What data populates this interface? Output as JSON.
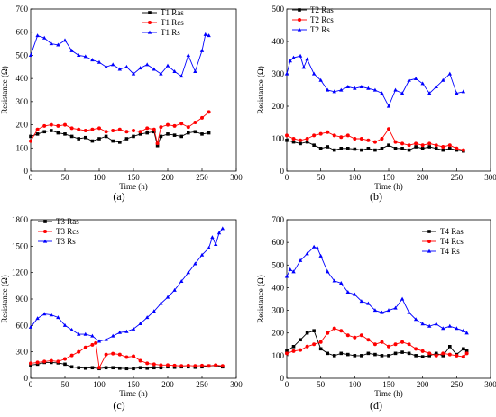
{
  "chart_data": [
    {
      "panel": "(a)",
      "type": "line",
      "xlabel": "Time (h)",
      "ylabel": "Resistance (Ω)",
      "xlim": [
        0,
        300
      ],
      "ylim": [
        0,
        700
      ],
      "xticks": [
        0,
        50,
        100,
        150,
        200,
        250,
        300
      ],
      "yticks": [
        0,
        100,
        200,
        300,
        400,
        500,
        600,
        700
      ],
      "legend_position": "top-right",
      "series": [
        {
          "name": "T1 Ras",
          "color": "#000000",
          "marker": "square",
          "x": [
            0,
            10,
            20,
            30,
            40,
            50,
            60,
            70,
            80,
            90,
            100,
            110,
            120,
            130,
            140,
            150,
            160,
            170,
            180,
            185,
            190,
            200,
            210,
            220,
            230,
            240,
            250,
            260
          ],
          "y": [
            150,
            160,
            170,
            175,
            165,
            160,
            150,
            140,
            145,
            130,
            140,
            150,
            130,
            125,
            140,
            150,
            160,
            165,
            170,
            110,
            150,
            160,
            155,
            150,
            165,
            170,
            160,
            165
          ]
        },
        {
          "name": "T1 Rcs",
          "color": "#ff0000",
          "marker": "circle",
          "x": [
            0,
            10,
            20,
            30,
            40,
            50,
            60,
            70,
            80,
            90,
            100,
            110,
            120,
            130,
            140,
            150,
            160,
            170,
            180,
            185,
            190,
            200,
            210,
            220,
            230,
            240,
            250,
            260
          ],
          "y": [
            130,
            180,
            195,
            200,
            195,
            200,
            185,
            180,
            175,
            180,
            185,
            170,
            175,
            180,
            170,
            175,
            170,
            185,
            180,
            120,
            190,
            200,
            195,
            205,
            190,
            210,
            230,
            255
          ]
        },
        {
          "name": "T1 Rs",
          "color": "#0000ff",
          "marker": "triangle",
          "x": [
            0,
            10,
            20,
            30,
            40,
            50,
            60,
            70,
            80,
            90,
            100,
            110,
            120,
            130,
            140,
            150,
            160,
            170,
            180,
            190,
            200,
            210,
            220,
            230,
            240,
            250,
            255,
            260
          ],
          "y": [
            500,
            585,
            575,
            550,
            545,
            565,
            520,
            500,
            495,
            480,
            470,
            450,
            460,
            440,
            450,
            420,
            445,
            460,
            440,
            420,
            455,
            430,
            410,
            500,
            430,
            520,
            590,
            585
          ]
        }
      ]
    },
    {
      "panel": "(b)",
      "type": "line",
      "xlabel": "Time (h)",
      "ylabel": "Resistance (Ω)",
      "xlim": [
        0,
        300
      ],
      "ylim": [
        0,
        500
      ],
      "xticks": [
        0,
        50,
        100,
        150,
        200,
        250,
        300
      ],
      "yticks": [
        0,
        100,
        200,
        300,
        400,
        500
      ],
      "legend_position": "top-left",
      "series": [
        {
          "name": "T2 Ras",
          "color": "#000000",
          "marker": "square",
          "x": [
            0,
            10,
            20,
            30,
            40,
            50,
            60,
            70,
            80,
            90,
            100,
            110,
            120,
            130,
            140,
            150,
            160,
            170,
            180,
            190,
            200,
            210,
            220,
            230,
            240,
            250,
            260
          ],
          "y": [
            95,
            90,
            85,
            90,
            80,
            70,
            75,
            65,
            70,
            70,
            68,
            65,
            70,
            65,
            70,
            80,
            70,
            70,
            65,
            75,
            70,
            75,
            70,
            65,
            70,
            65,
            62
          ]
        },
        {
          "name": "T2 Rcs",
          "color": "#ff0000",
          "marker": "circle",
          "x": [
            0,
            10,
            20,
            30,
            40,
            50,
            60,
            70,
            80,
            90,
            100,
            110,
            120,
            130,
            140,
            150,
            160,
            170,
            180,
            190,
            200,
            210,
            220,
            230,
            240,
            250,
            260
          ],
          "y": [
            110,
            100,
            95,
            100,
            110,
            115,
            120,
            110,
            105,
            110,
            100,
            100,
            95,
            90,
            100,
            130,
            90,
            85,
            80,
            85,
            80,
            85,
            80,
            75,
            80,
            70,
            65
          ]
        },
        {
          "name": "T2 Rs",
          "color": "#0000ff",
          "marker": "triangle",
          "x": [
            0,
            5,
            10,
            20,
            25,
            30,
            40,
            50,
            60,
            70,
            80,
            90,
            100,
            110,
            120,
            130,
            140,
            150,
            160,
            170,
            180,
            190,
            200,
            210,
            220,
            230,
            240,
            250,
            260
          ],
          "y": [
            300,
            340,
            350,
            355,
            320,
            345,
            300,
            280,
            250,
            245,
            250,
            260,
            255,
            260,
            255,
            250,
            240,
            200,
            250,
            240,
            280,
            285,
            270,
            240,
            260,
            280,
            300,
            240,
            245
          ]
        }
      ]
    },
    {
      "panel": "(c)",
      "type": "line",
      "xlabel": "Time (h)",
      "ylabel": "Resistance (Ω)",
      "xlim": [
        0,
        300
      ],
      "ylim": [
        0,
        1800
      ],
      "xticks": [
        0,
        50,
        100,
        150,
        200,
        250,
        300
      ],
      "yticks": [
        0,
        300,
        600,
        900,
        1200,
        1500,
        1800
      ],
      "legend_position": "top-left",
      "series": [
        {
          "name": "T3 Ras",
          "color": "#000000",
          "marker": "square",
          "x": [
            0,
            10,
            20,
            30,
            40,
            50,
            60,
            70,
            80,
            90,
            100,
            110,
            120,
            130,
            140,
            150,
            160,
            170,
            180,
            190,
            200,
            210,
            220,
            230,
            240,
            250,
            260,
            270,
            280
          ],
          "y": [
            150,
            160,
            180,
            180,
            175,
            160,
            130,
            120,
            115,
            120,
            110,
            120,
            120,
            115,
            110,
            110,
            120,
            115,
            120,
            120,
            130,
            125,
            130,
            130,
            125,
            130,
            140,
            145,
            130
          ]
        },
        {
          "name": "T3 Rcs",
          "color": "#ff0000",
          "marker": "circle",
          "x": [
            0,
            10,
            20,
            30,
            40,
            50,
            60,
            70,
            80,
            90,
            95,
            100,
            110,
            120,
            130,
            140,
            150,
            160,
            170,
            180,
            190,
            200,
            210,
            220,
            230,
            240,
            250,
            260,
            270,
            280
          ],
          "y": [
            170,
            180,
            190,
            200,
            190,
            220,
            260,
            300,
            350,
            380,
            400,
            120,
            270,
            280,
            270,
            240,
            250,
            200,
            170,
            160,
            150,
            150,
            145,
            140,
            145,
            140,
            145,
            140,
            150,
            140
          ]
        },
        {
          "name": "T3 Rs",
          "color": "#0000ff",
          "marker": "triangle",
          "x": [
            0,
            10,
            20,
            30,
            40,
            50,
            60,
            70,
            80,
            90,
            100,
            110,
            120,
            130,
            140,
            150,
            160,
            170,
            180,
            190,
            200,
            210,
            220,
            230,
            240,
            250,
            260,
            265,
            270,
            275,
            280
          ],
          "y": [
            580,
            680,
            730,
            720,
            690,
            600,
            550,
            500,
            500,
            480,
            420,
            440,
            480,
            520,
            530,
            560,
            620,
            690,
            760,
            850,
            920,
            1000,
            1100,
            1200,
            1300,
            1400,
            1480,
            1600,
            1520,
            1650,
            1700
          ]
        }
      ]
    },
    {
      "panel": "(d)",
      "type": "line",
      "xlabel": "Time (h)",
      "ylabel": "Resistance (Ω)",
      "xlim": [
        0,
        300
      ],
      "ylim": [
        0,
        700
      ],
      "xticks": [
        0,
        50,
        100,
        150,
        200,
        250,
        300
      ],
      "yticks": [
        0,
        100,
        200,
        300,
        400,
        500,
        600,
        700
      ],
      "legend_position": "top-right",
      "series": [
        {
          "name": "T4 Ras",
          "color": "#000000",
          "marker": "square",
          "x": [
            0,
            10,
            20,
            30,
            40,
            50,
            60,
            70,
            80,
            90,
            100,
            110,
            120,
            130,
            140,
            150,
            160,
            170,
            180,
            190,
            200,
            210,
            220,
            230,
            240,
            250,
            260,
            265
          ],
          "y": [
            120,
            140,
            170,
            200,
            210,
            130,
            110,
            100,
            110,
            105,
            100,
            100,
            110,
            105,
            100,
            100,
            110,
            115,
            110,
            100,
            95,
            100,
            110,
            100,
            140,
            105,
            130,
            120
          ]
        },
        {
          "name": "T4 Rcs",
          "color": "#ff0000",
          "marker": "circle",
          "x": [
            0,
            10,
            20,
            30,
            40,
            50,
            60,
            70,
            80,
            90,
            100,
            110,
            120,
            130,
            140,
            150,
            160,
            170,
            180,
            190,
            200,
            210,
            220,
            230,
            240,
            250,
            260,
            265
          ],
          "y": [
            110,
            120,
            125,
            140,
            150,
            160,
            200,
            220,
            210,
            190,
            180,
            190,
            170,
            150,
            160,
            140,
            150,
            160,
            150,
            130,
            120,
            110,
            100,
            110,
            105,
            100,
            95,
            110
          ]
        },
        {
          "name": "T4 Rs",
          "color": "#0000ff",
          "marker": "triangle",
          "x": [
            0,
            5,
            10,
            20,
            30,
            40,
            45,
            50,
            60,
            70,
            80,
            90,
            100,
            110,
            120,
            130,
            140,
            150,
            160,
            170,
            180,
            190,
            200,
            210,
            220,
            230,
            240,
            250,
            260,
            265
          ],
          "y": [
            450,
            480,
            470,
            520,
            550,
            580,
            575,
            540,
            470,
            430,
            420,
            380,
            370,
            340,
            330,
            300,
            290,
            300,
            310,
            350,
            290,
            260,
            240,
            230,
            240,
            220,
            230,
            220,
            210,
            200
          ]
        }
      ]
    }
  ]
}
